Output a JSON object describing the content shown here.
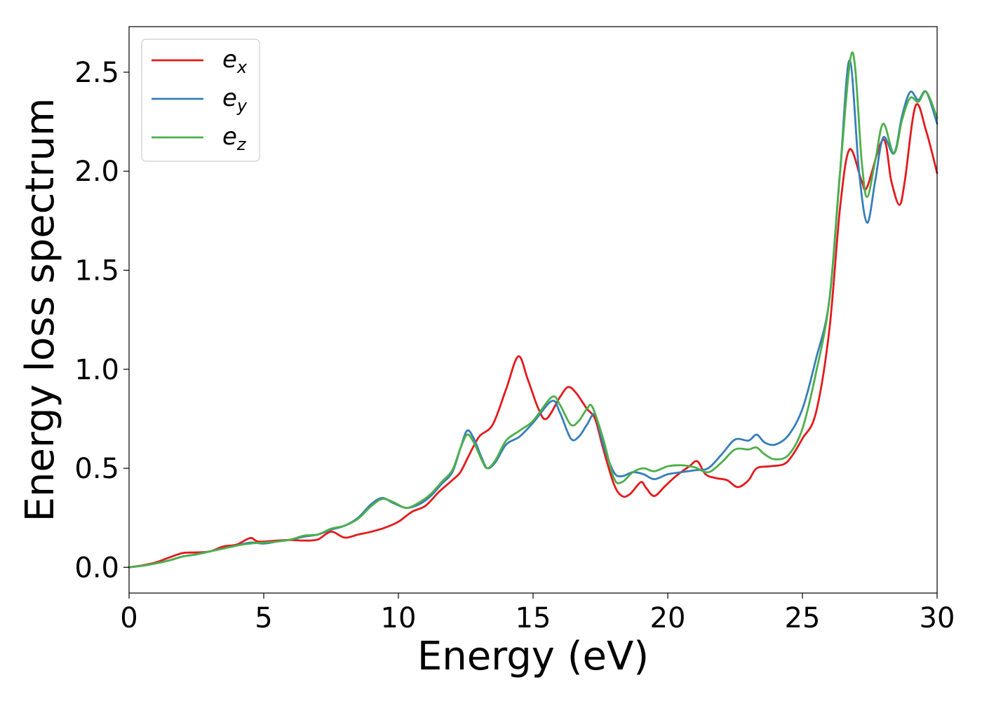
{
  "chart_data": {
    "type": "line",
    "xlabel": "Energy (eV)",
    "ylabel": "Energy loss spectrum",
    "xlim": [
      0,
      30
    ],
    "ylim": [
      -0.13,
      2.73
    ],
    "xticks": [
      0,
      5,
      10,
      15,
      20,
      25,
      30
    ],
    "yticks": [
      0.0,
      0.5,
      1.0,
      1.5,
      2.0,
      2.5
    ],
    "xtick_labels": [
      "0",
      "5",
      "10",
      "15",
      "20",
      "25",
      "30"
    ],
    "ytick_labels": [
      "0.0",
      "0.5",
      "1.0",
      "1.5",
      "2.0",
      "2.5"
    ],
    "grid": false,
    "legend_position": "top-left",
    "series": [
      {
        "name": "e",
        "subscript": "x",
        "color": "#e41a1c",
        "points": [
          [
            0,
            0
          ],
          [
            0.5,
            0.01
          ],
          [
            1,
            0.025
          ],
          [
            1.5,
            0.05
          ],
          [
            2,
            0.072
          ],
          [
            2.5,
            0.075
          ],
          [
            3,
            0.08
          ],
          [
            3.5,
            0.105
          ],
          [
            4,
            0.115
          ],
          [
            4.5,
            0.148
          ],
          [
            4.8,
            0.13
          ],
          [
            5.5,
            0.135
          ],
          [
            6,
            0.138
          ],
          [
            6.5,
            0.135
          ],
          [
            7,
            0.14
          ],
          [
            7.5,
            0.18
          ],
          [
            8,
            0.15
          ],
          [
            8.5,
            0.165
          ],
          [
            9,
            0.18
          ],
          [
            9.5,
            0.2
          ],
          [
            10,
            0.23
          ],
          [
            10.5,
            0.28
          ],
          [
            11,
            0.31
          ],
          [
            11.5,
            0.38
          ],
          [
            12,
            0.44
          ],
          [
            12.3,
            0.48
          ],
          [
            12.6,
            0.56
          ],
          [
            13,
            0.66
          ],
          [
            13.5,
            0.72
          ],
          [
            14,
            0.9
          ],
          [
            14.45,
            1.065
          ],
          [
            14.8,
            0.95
          ],
          [
            15.2,
            0.8
          ],
          [
            15.5,
            0.75
          ],
          [
            16,
            0.86
          ],
          [
            16.3,
            0.91
          ],
          [
            16.6,
            0.88
          ],
          [
            17,
            0.8
          ],
          [
            17.3,
            0.75
          ],
          [
            17.6,
            0.6
          ],
          [
            18,
            0.42
          ],
          [
            18.3,
            0.36
          ],
          [
            18.6,
            0.37
          ],
          [
            19,
            0.43
          ],
          [
            19.2,
            0.4
          ],
          [
            19.5,
            0.36
          ],
          [
            19.9,
            0.41
          ],
          [
            20.3,
            0.46
          ],
          [
            20.8,
            0.51
          ],
          [
            21.1,
            0.535
          ],
          [
            21.4,
            0.47
          ],
          [
            21.8,
            0.45
          ],
          [
            22.2,
            0.44
          ],
          [
            22.6,
            0.405
          ],
          [
            23,
            0.44
          ],
          [
            23.3,
            0.5
          ],
          [
            23.8,
            0.51
          ],
          [
            24.3,
            0.52
          ],
          [
            24.6,
            0.56
          ],
          [
            25,
            0.65
          ],
          [
            25.5,
            0.78
          ],
          [
            26,
            1.2
          ],
          [
            26.4,
            1.82
          ],
          [
            26.75,
            2.11
          ],
          [
            27.2,
            1.95
          ],
          [
            27.4,
            1.92
          ],
          [
            28,
            2.16
          ],
          [
            28.3,
            1.95
          ],
          [
            28.6,
            1.83
          ],
          [
            28.8,
            1.95
          ],
          [
            29.2,
            2.33
          ],
          [
            29.6,
            2.2
          ],
          [
            30,
            1.99
          ]
        ]
      },
      {
        "name": "e",
        "subscript": "y",
        "color": "#377eb8",
        "points": [
          [
            0,
            0
          ],
          [
            0.5,
            0.008
          ],
          [
            1,
            0.02
          ],
          [
            1.5,
            0.035
          ],
          [
            2,
            0.055
          ],
          [
            2.5,
            0.065
          ],
          [
            3,
            0.08
          ],
          [
            3.5,
            0.095
          ],
          [
            4,
            0.11
          ],
          [
            4.5,
            0.125
          ],
          [
            5,
            0.12
          ],
          [
            5.5,
            0.13
          ],
          [
            6,
            0.14
          ],
          [
            6.5,
            0.155
          ],
          [
            7,
            0.165
          ],
          [
            7.5,
            0.19
          ],
          [
            8,
            0.21
          ],
          [
            8.5,
            0.25
          ],
          [
            9,
            0.32
          ],
          [
            9.4,
            0.35
          ],
          [
            9.8,
            0.325
          ],
          [
            10.3,
            0.3
          ],
          [
            10.8,
            0.32
          ],
          [
            11.2,
            0.36
          ],
          [
            11.6,
            0.42
          ],
          [
            12,
            0.48
          ],
          [
            12.3,
            0.6
          ],
          [
            12.55,
            0.69
          ],
          [
            12.8,
            0.65
          ],
          [
            13.1,
            0.55
          ],
          [
            13.3,
            0.5
          ],
          [
            13.6,
            0.53
          ],
          [
            14,
            0.62
          ],
          [
            14.5,
            0.66
          ],
          [
            15,
            0.73
          ],
          [
            15.7,
            0.84
          ],
          [
            16,
            0.78
          ],
          [
            16.4,
            0.65
          ],
          [
            16.7,
            0.66
          ],
          [
            17,
            0.72
          ],
          [
            17.3,
            0.77
          ],
          [
            17.6,
            0.62
          ],
          [
            18,
            0.48
          ],
          [
            18.3,
            0.46
          ],
          [
            18.7,
            0.48
          ],
          [
            19.1,
            0.47
          ],
          [
            19.5,
            0.445
          ],
          [
            20,
            0.47
          ],
          [
            20.5,
            0.48
          ],
          [
            21,
            0.49
          ],
          [
            21.5,
            0.5
          ],
          [
            22,
            0.57
          ],
          [
            22.5,
            0.645
          ],
          [
            23,
            0.64
          ],
          [
            23.3,
            0.67
          ],
          [
            23.6,
            0.63
          ],
          [
            24,
            0.62
          ],
          [
            24.5,
            0.67
          ],
          [
            25,
            0.8
          ],
          [
            25.5,
            1.05
          ],
          [
            26,
            1.35
          ],
          [
            26.4,
            2.0
          ],
          [
            26.75,
            2.56
          ],
          [
            27.1,
            2.0
          ],
          [
            27.4,
            1.74
          ],
          [
            27.7,
            1.95
          ],
          [
            28,
            2.17
          ],
          [
            28.4,
            2.09
          ],
          [
            28.7,
            2.28
          ],
          [
            29,
            2.4
          ],
          [
            29.3,
            2.36
          ],
          [
            29.6,
            2.4
          ],
          [
            30,
            2.24
          ]
        ]
      },
      {
        "name": "e",
        "subscript": "z",
        "color": "#4daf4a",
        "points": [
          [
            0,
            0
          ],
          [
            0.5,
            0.008
          ],
          [
            1,
            0.02
          ],
          [
            1.5,
            0.035
          ],
          [
            2,
            0.055
          ],
          [
            2.5,
            0.065
          ],
          [
            3,
            0.08
          ],
          [
            3.5,
            0.095
          ],
          [
            4,
            0.11
          ],
          [
            4.5,
            0.12
          ],
          [
            5,
            0.125
          ],
          [
            5.5,
            0.13
          ],
          [
            6,
            0.14
          ],
          [
            6.5,
            0.16
          ],
          [
            7,
            0.165
          ],
          [
            7.5,
            0.195
          ],
          [
            8,
            0.21
          ],
          [
            8.5,
            0.245
          ],
          [
            9,
            0.31
          ],
          [
            9.4,
            0.345
          ],
          [
            9.8,
            0.33
          ],
          [
            10.3,
            0.3
          ],
          [
            10.8,
            0.33
          ],
          [
            11.2,
            0.37
          ],
          [
            11.6,
            0.43
          ],
          [
            12,
            0.49
          ],
          [
            12.3,
            0.6
          ],
          [
            12.55,
            0.67
          ],
          [
            12.8,
            0.63
          ],
          [
            13.1,
            0.54
          ],
          [
            13.3,
            0.5
          ],
          [
            13.6,
            0.54
          ],
          [
            14,
            0.64
          ],
          [
            14.5,
            0.69
          ],
          [
            15,
            0.74
          ],
          [
            15.7,
            0.86
          ],
          [
            16,
            0.82
          ],
          [
            16.4,
            0.72
          ],
          [
            16.7,
            0.74
          ],
          [
            17,
            0.8
          ],
          [
            17.2,
            0.81
          ],
          [
            17.6,
            0.65
          ],
          [
            18,
            0.45
          ],
          [
            18.3,
            0.43
          ],
          [
            18.7,
            0.48
          ],
          [
            19.1,
            0.5
          ],
          [
            19.5,
            0.485
          ],
          [
            20,
            0.51
          ],
          [
            20.5,
            0.515
          ],
          [
            21,
            0.505
          ],
          [
            21.5,
            0.48
          ],
          [
            22,
            0.53
          ],
          [
            22.5,
            0.595
          ],
          [
            23,
            0.595
          ],
          [
            23.3,
            0.605
          ],
          [
            23.6,
            0.57
          ],
          [
            24,
            0.545
          ],
          [
            24.5,
            0.57
          ],
          [
            25,
            0.7
          ],
          [
            25.5,
            0.98
          ],
          [
            26,
            1.35
          ],
          [
            26.4,
            2.0
          ],
          [
            26.85,
            2.6
          ],
          [
            27.2,
            2.05
          ],
          [
            27.4,
            1.87
          ],
          [
            27.7,
            2.05
          ],
          [
            28,
            2.24
          ],
          [
            28.4,
            2.09
          ],
          [
            28.7,
            2.26
          ],
          [
            29,
            2.37
          ],
          [
            29.3,
            2.35
          ],
          [
            29.6,
            2.4
          ],
          [
            30,
            2.27
          ]
        ]
      }
    ]
  }
}
